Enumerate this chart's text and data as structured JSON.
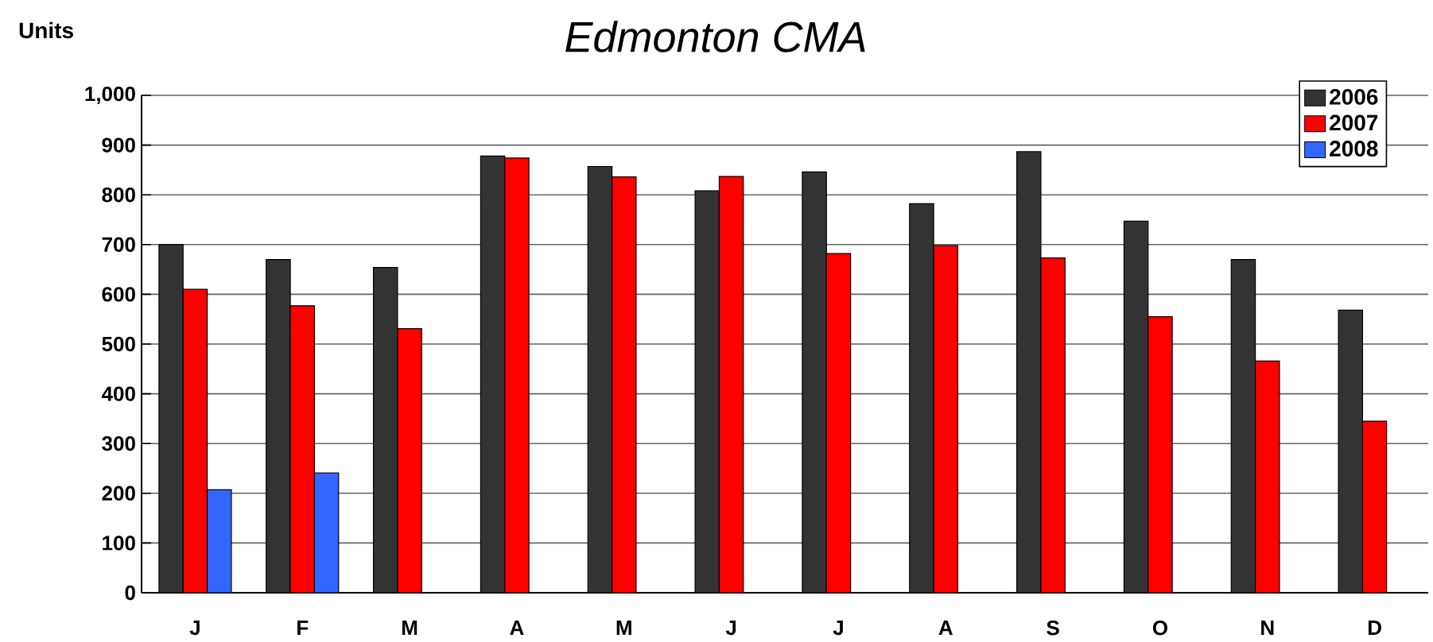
{
  "chart_data": {
    "type": "bar",
    "title": "Edmonton CMA",
    "ylabel": "Units",
    "categories": [
      "J",
      "F",
      "M",
      "A",
      "M",
      "J",
      "J",
      "A",
      "S",
      "O",
      "N",
      "D"
    ],
    "series": [
      {
        "name": "2006",
        "color": "#333333",
        "values": [
          700,
          670,
          654,
          878,
          857,
          808,
          846,
          782,
          887,
          747,
          670,
          568
        ]
      },
      {
        "name": "2007",
        "color": "#ff0000",
        "values": [
          610,
          577,
          531,
          874,
          836,
          837,
          682,
          698,
          673,
          555,
          466,
          345
        ]
      },
      {
        "name": "2008",
        "color": "#3366ff",
        "values": [
          207,
          241,
          null,
          null,
          null,
          null,
          null,
          null,
          null,
          null,
          null,
          null
        ]
      }
    ],
    "ylim": [
      0,
      1000
    ],
    "yticks": [
      0,
      100,
      200,
      300,
      400,
      500,
      600,
      700,
      800,
      900,
      {
        "value": 1000,
        "label": "1,000"
      }
    ],
    "grid": "y",
    "legend": "top right"
  }
}
